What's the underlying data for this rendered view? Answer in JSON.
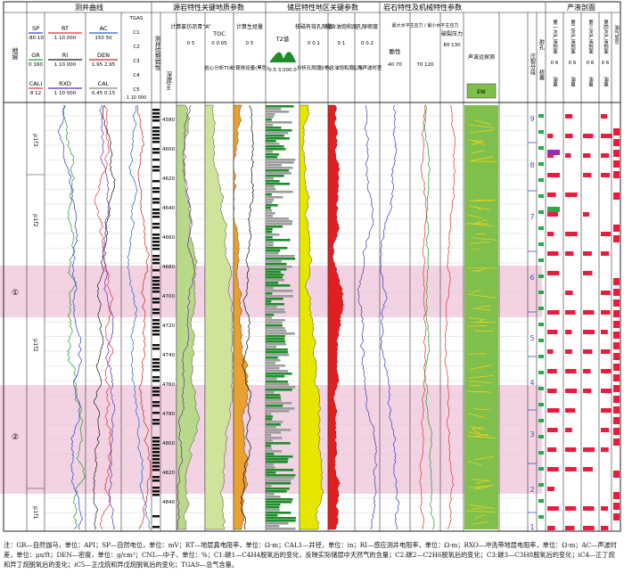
{
  "header": {
    "group_logging": "测井曲线",
    "group_source": "源岩特性关键地质参数",
    "group_reservoir": "储层特性地区关键参数",
    "group_rock": "岩石特性及机械特性参数",
    "group_production": "产液剖面",
    "col_stratum": "地层",
    "col_lithology": "测井优势岩性",
    "col_depth": "深度/m",
    "col_source_a": "计算氯仿沥青“A”",
    "col_toc": "TOC",
    "col_hc_gen": "计算生烃量",
    "col_t2": "T2谱",
    "col_porosity": "核磁有效孔隙度",
    "col_oil_sat": "视含油饱和度",
    "col_pore_density": "孔隙密度",
    "col_brittle": "脆性",
    "col_stress": "最大水平主应力 / 最小水平主应力",
    "col_frac_pressure": "破裂压力",
    "col_sonic": "声波远探测",
    "col_sonic_badge": "EW",
    "col_frac_stage": "压裂分段",
    "col_perf": "射孔",
    "col_bridge": "桥塞",
    "col_prod_1": "第一次产液剖面",
    "col_prod_2": "第二次产液剖面",
    "col_prod_3": "第三次产液剖面",
    "col_prod_4": "第四次产液剖面",
    "col_gas_show": "油气显示",
    "sub_oil": "油量"
  },
  "curve_labels": {
    "sp": "SP",
    "sp_range": "-80 10",
    "rt": "RT",
    "rt_range": "1 10 000",
    "ac": "AC",
    "ac_range": "150 50",
    "gr": "GR",
    "gr_range": "0 160",
    "ri": "RI",
    "ri_range": "1 10 000",
    "den": "DEN",
    "den_range": "1.95 2.95",
    "cali": "CALI",
    "cali_range": "8 12",
    "rxo": "RXO",
    "rxo_range": "1 10 000",
    "cal": "CAL",
    "cal_range": "0.45 0.15",
    "tgas": "TGAS",
    "c1": "C1",
    "c2": "C2",
    "c3": "C3",
    "ic4": "C4",
    "c5": "C5",
    "gas_range": "1 10 000",
    "source_a_range": "0 5",
    "toc_range": "0 0.05",
    "hc_range": "0 5",
    "toc_calc": "岩心分析TOC",
    "hc_calc": "计算排烃量(黑色)",
    "t2_range": "0.5 3 000.0",
    "por_range": "0 0.1",
    "sat_range": "0 1",
    "den_range2": "0 0.2",
    "por_calc": "分析孔隙度，%",
    "sat_calc": "分析含油饱和度，%",
    "den_calc": "孔隙声波时差",
    "brittle_range": "40 70",
    "stress_range": "70 120",
    "frac_range": "80 130",
    "prod_scale": "0 6"
  },
  "depth_ticks": [
    "4580",
    "4600",
    "4620",
    "4640",
    "4660",
    "4680",
    "4700",
    "4720",
    "4740",
    "4760",
    "4780",
    "4800",
    "4820",
    "4840"
  ],
  "strata": [
    {
      "label": "p1f3"
    },
    {
      "label": "p1f2"
    },
    {
      "label": "p1f2"
    },
    {
      "label": "p1f1"
    }
  ],
  "zones": [
    {
      "label": "①"
    },
    {
      "label": "②"
    }
  ],
  "frac_stages": [
    "9",
    "8",
    "7",
    "6",
    "5",
    "4",
    "3",
    "2",
    "1"
  ],
  "colors": {
    "zone_fill": "#f3d3e3",
    "gr": "#1a9c2a",
    "sp": "#2b3bd0",
    "rt": "#e03030",
    "ri": "#1a1a1a",
    "rxo": "#5a2bb0",
    "den": "#d02020",
    "ac": "#2060c0",
    "oil": "#e81c3c",
    "green_bar": "#2aa84a",
    "purple_bar": "#9a2bb0",
    "t2_green": "#1e8c2a",
    "por_yellow": "#e6e600",
    "sat_red": "#e02020",
    "sonic_green": "#7fc04c",
    "lith_black": "#111111"
  },
  "legend_note": "注：GR—自然伽马，单位：API；SP—自然电位，单位：mV；RT—地层真电阻率，单位：Ω·m；CAL1—井径，单位：in；RI—感应测井电阻率，单位：Ω·m；RXO—冲洗带地层电阻率，单位：Ω·m；AC—声波时差，单位：μs/ft；DEN—密度，单位：g/cm³；CNL—中子，单位：%；C1:碳1—C4H4脱氧后的变化，反映实际储层中天然气的含量；C2:碳2—C2H6脱氧后的变化；C3:碳3—C3H8脱氧后的变化；iC4—正丁烷和异丁烷脱氧后的变化；iC5—正戊烷和异戊烷脱氧后的变化；TGAS—总气含量。"
}
